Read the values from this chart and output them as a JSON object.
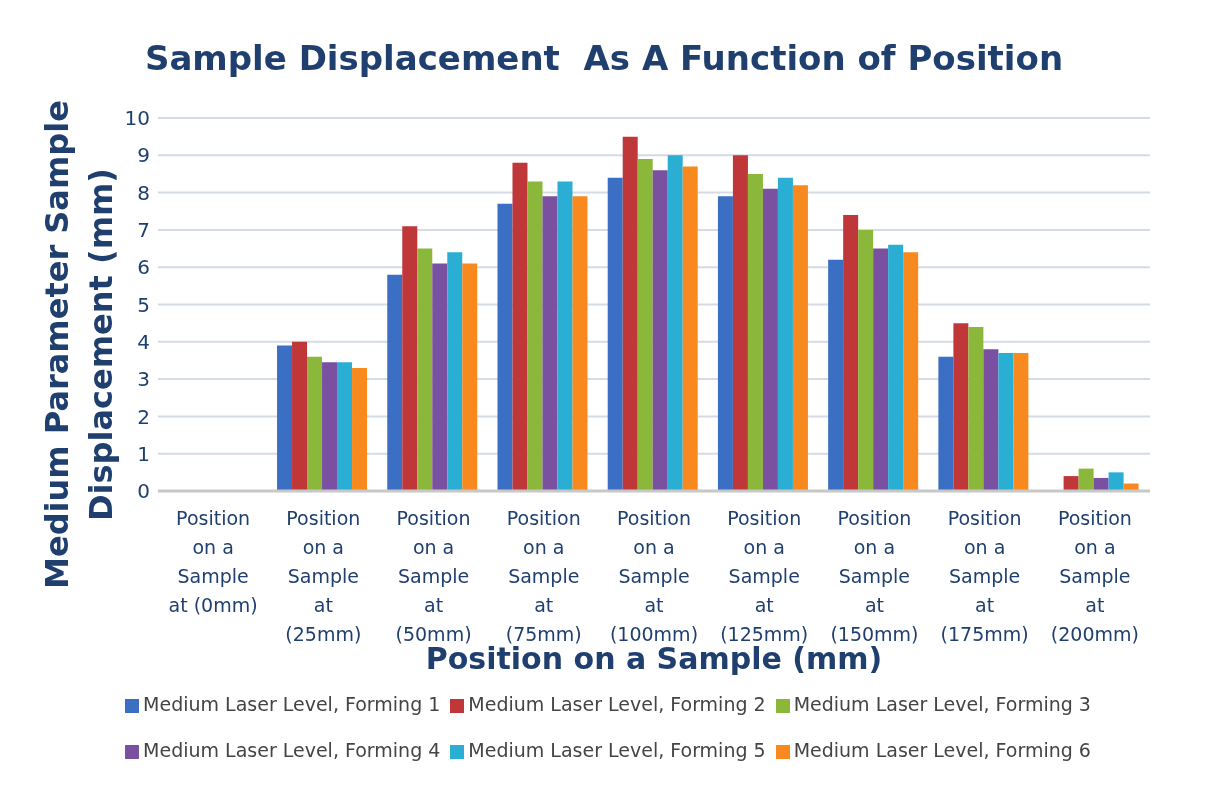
{
  "chart_data": {
    "type": "bar",
    "title": "Sample Displacement  As A Function of Position",
    "xlabel": "Position on a Sample (mm)",
    "ylabel": "Medium Parameter Sample Displacement (mm)",
    "categories": [
      "Position on a Sample at (0mm)",
      "Position on a Sample at (25mm)",
      "Position on a Sample at (50mm)",
      "Position on a Sample at (75mm)",
      "Position on a Sample at (100mm)",
      "Position on a Sample at (125mm)",
      "Position on a Sample at (150mm)",
      "Position on a Sample at (175mm)",
      "Position on a Sample at (200mm)"
    ],
    "series": [
      {
        "name": "Medium Laser Level, Forming 1",
        "color": "#3a6fc4",
        "values": [
          0,
          3.9,
          5.8,
          7.7,
          8.4,
          7.9,
          6.2,
          3.6,
          0
        ]
      },
      {
        "name": "Medium Laser Level, Forming 2",
        "color": "#c0373a",
        "values": [
          0,
          4.0,
          7.1,
          8.8,
          9.5,
          9.0,
          7.4,
          4.5,
          0.4
        ]
      },
      {
        "name": "Medium Laser Level, Forming 3",
        "color": "#8bb73b",
        "values": [
          0,
          3.6,
          6.5,
          8.3,
          8.9,
          8.5,
          7.0,
          4.4,
          0.6
        ]
      },
      {
        "name": "Medium Laser Level, Forming 4",
        "color": "#7a51a0",
        "values": [
          0,
          3.45,
          6.1,
          7.9,
          8.6,
          8.1,
          6.5,
          3.8,
          0.35
        ]
      },
      {
        "name": "Medium Laser Level, Forming 5",
        "color": "#2aaed4",
        "values": [
          0,
          3.45,
          6.4,
          8.3,
          9.0,
          8.4,
          6.6,
          3.7,
          0.5
        ]
      },
      {
        "name": "Medium Laser Level, Forming 6",
        "color": "#f7891f",
        "values": [
          0,
          3.3,
          6.1,
          7.9,
          8.7,
          8.2,
          6.4,
          3.7,
          0.2
        ]
      }
    ],
    "ylim": [
      0,
      10
    ],
    "yticks": [
      0,
      1,
      2,
      3,
      4,
      5,
      6,
      7,
      8,
      9,
      10
    ],
    "grid": "y",
    "legend": "bottom"
  }
}
